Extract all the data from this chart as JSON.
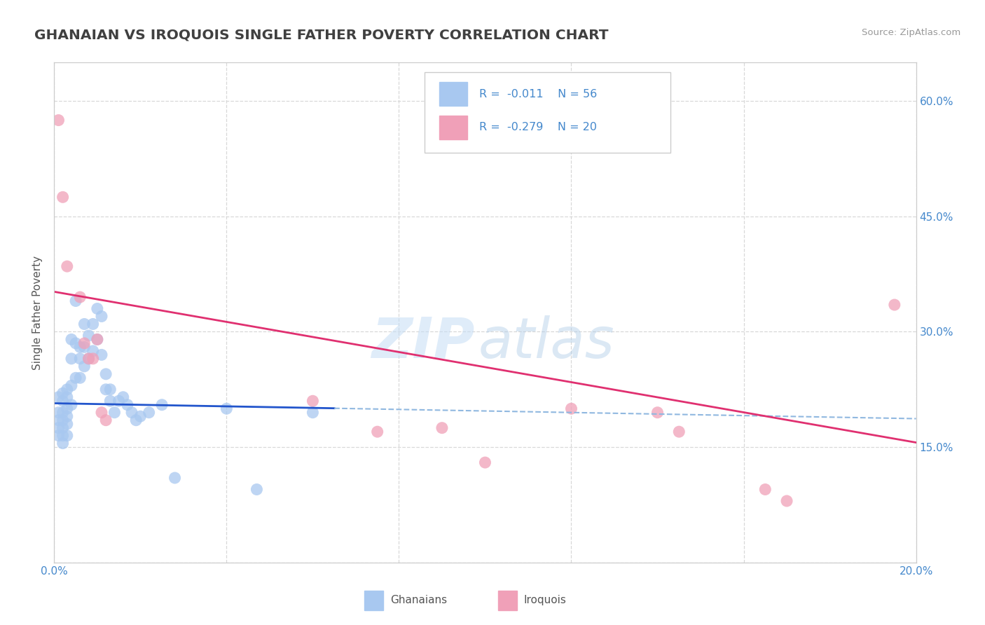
{
  "title": "GHANAIAN VS IROQUOIS SINGLE FATHER POVERTY CORRELATION CHART",
  "source": "Source: ZipAtlas.com",
  "ylabel": "Single Father Poverty",
  "xlim": [
    0.0,
    0.2
  ],
  "ylim": [
    0.0,
    0.65
  ],
  "ghanaian_color": "#a8c8f0",
  "iroquois_color": "#f0a0b8",
  "ghanaian_line_color": "#2255cc",
  "ghanaian_dash_color": "#90b8e0",
  "iroquois_line_color": "#e03070",
  "legend_R_ghanaian": "R =  -0.011",
  "legend_N_ghanaian": "N = 56",
  "legend_R_iroquois": "R =  -0.279",
  "legend_N_iroquois": "N = 20",
  "ghanaian_x": [
    0.001,
    0.001,
    0.001,
    0.001,
    0.001,
    0.002,
    0.002,
    0.002,
    0.002,
    0.002,
    0.002,
    0.002,
    0.003,
    0.003,
    0.003,
    0.003,
    0.003,
    0.003,
    0.004,
    0.004,
    0.004,
    0.004,
    0.005,
    0.005,
    0.005,
    0.006,
    0.006,
    0.006,
    0.007,
    0.007,
    0.007,
    0.008,
    0.008,
    0.009,
    0.009,
    0.01,
    0.01,
    0.011,
    0.011,
    0.012,
    0.012,
    0.013,
    0.013,
    0.014,
    0.015,
    0.016,
    0.017,
    0.018,
    0.019,
    0.02,
    0.022,
    0.025,
    0.028,
    0.04,
    0.047,
    0.06
  ],
  "ghanaian_y": [
    0.215,
    0.195,
    0.185,
    0.175,
    0.165,
    0.22,
    0.21,
    0.195,
    0.185,
    0.175,
    0.165,
    0.155,
    0.225,
    0.215,
    0.2,
    0.19,
    0.18,
    0.165,
    0.29,
    0.265,
    0.23,
    0.205,
    0.34,
    0.285,
    0.24,
    0.28,
    0.265,
    0.24,
    0.31,
    0.28,
    0.255,
    0.295,
    0.265,
    0.31,
    0.275,
    0.33,
    0.29,
    0.32,
    0.27,
    0.245,
    0.225,
    0.225,
    0.21,
    0.195,
    0.21,
    0.215,
    0.205,
    0.195,
    0.185,
    0.19,
    0.195,
    0.205,
    0.11,
    0.2,
    0.095,
    0.195
  ],
  "iroquois_x": [
    0.001,
    0.002,
    0.003,
    0.006,
    0.007,
    0.008,
    0.009,
    0.01,
    0.011,
    0.012,
    0.06,
    0.075,
    0.09,
    0.1,
    0.12,
    0.14,
    0.145,
    0.165,
    0.17,
    0.195
  ],
  "iroquois_y": [
    0.575,
    0.475,
    0.385,
    0.345,
    0.285,
    0.265,
    0.265,
    0.29,
    0.195,
    0.185,
    0.21,
    0.17,
    0.175,
    0.13,
    0.2,
    0.195,
    0.17,
    0.095,
    0.08,
    0.335
  ],
  "background_color": "#ffffff",
  "grid_color": "#d8d8d8",
  "title_color": "#404040",
  "axis_label_color": "#4488cc",
  "watermark_zip_color": "#c5ddf5",
  "watermark_atlas_color": "#b0cce8"
}
